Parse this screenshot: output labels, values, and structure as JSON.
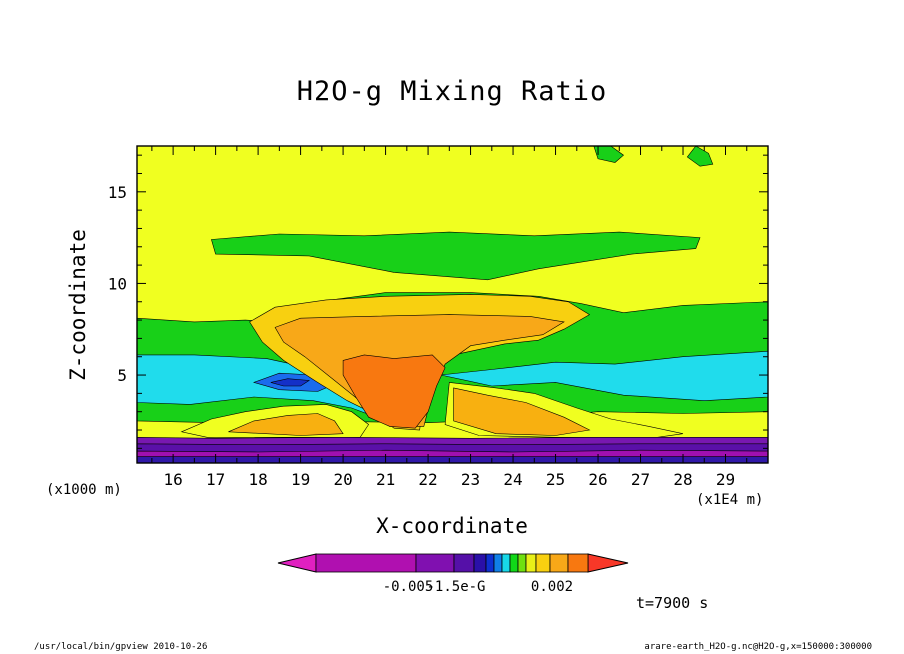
{
  "chart_data": {
    "type": "contour",
    "title": "H2O-g Mixing Ratio",
    "xlabel": "X-coordinate",
    "ylabel": "Z-coordinate",
    "x_units": "(x1E4 m)",
    "y_units": "(x1000 m)",
    "xlim": [
      15.15,
      30.0
    ],
    "ylim": [
      0.2,
      17.5
    ],
    "x_ticks": [
      "16",
      "17",
      "18",
      "19",
      "20",
      "21",
      "22",
      "23",
      "24",
      "25",
      "26",
      "27",
      "28",
      "29"
    ],
    "y_ticks": [
      "5",
      "10",
      "15"
    ],
    "colorbar_labels": [
      "-0.005",
      "-1.5e-G",
      "0.002"
    ],
    "colorbar_colors": [
      "#e020c0",
      "#b010b0",
      "#8010b0",
      "#5510a8",
      "#2a10a8",
      "#0d30d0",
      "#1080e8",
      "#18d8e8",
      "#10d818",
      "#70e010",
      "#e8f018",
      "#f8d010",
      "#f8a818",
      "#f87810",
      "#f83828"
    ],
    "background_color": "#f0ff20",
    "regions": [
      {
        "name": "upper-green-band",
        "color": "#18d018",
        "points": [
          [
            16.9,
            12.4
          ],
          [
            18.5,
            12.7
          ],
          [
            20.5,
            12.6
          ],
          [
            22.5,
            12.8
          ],
          [
            24.5,
            12.6
          ],
          [
            26.5,
            12.8
          ],
          [
            28.4,
            12.5
          ],
          [
            28.3,
            11.9
          ],
          [
            26.8,
            11.6
          ],
          [
            24.6,
            10.8
          ],
          [
            23.4,
            10.2
          ],
          [
            21.2,
            10.6
          ],
          [
            19.2,
            11.5
          ],
          [
            17.0,
            11.6
          ]
        ]
      },
      {
        "name": "green-pocket-top",
        "color": "#18d018",
        "points": [
          [
            26.3,
            17.5
          ],
          [
            26.6,
            17.0
          ],
          [
            26.4,
            16.6
          ],
          [
            26.0,
            16.8
          ],
          [
            25.9,
            17.5
          ]
        ]
      },
      {
        "name": "green-pocket-right",
        "color": "#18d018",
        "points": [
          [
            28.3,
            17.5
          ],
          [
            28.6,
            17.1
          ],
          [
            28.7,
            16.5
          ],
          [
            28.4,
            16.4
          ],
          [
            28.1,
            16.9
          ]
        ]
      },
      {
        "name": "mid-green-band",
        "color": "#18d018",
        "points": [
          [
            15.15,
            8.1
          ],
          [
            16.5,
            7.9
          ],
          [
            17.7,
            8.0
          ],
          [
            18.4,
            7.9
          ],
          [
            19.4,
            9.0
          ],
          [
            21.0,
            9.5
          ],
          [
            23.0,
            9.5
          ],
          [
            24.6,
            9.3
          ],
          [
            25.6,
            8.9
          ],
          [
            26.6,
            8.4
          ],
          [
            28.0,
            8.8
          ],
          [
            30.0,
            9.0
          ],
          [
            30.0,
            3.0
          ],
          [
            28.0,
            2.9
          ],
          [
            26.0,
            3.0
          ],
          [
            24.0,
            2.6
          ],
          [
            22.0,
            2.4
          ],
          [
            19.0,
            2.5
          ],
          [
            17.0,
            2.4
          ],
          [
            15.15,
            2.5
          ]
        ]
      },
      {
        "name": "cyan-layer-left",
        "color": "#20dcec",
        "points": [
          [
            15.15,
            6.1
          ],
          [
            16.5,
            6.1
          ],
          [
            18.2,
            5.9
          ],
          [
            19.6,
            5.2
          ],
          [
            20.4,
            4.0
          ],
          [
            20.9,
            2.6
          ],
          [
            20.2,
            3.2
          ],
          [
            19.3,
            3.6
          ],
          [
            17.9,
            3.8
          ],
          [
            16.4,
            3.4
          ],
          [
            15.15,
            3.5
          ]
        ]
      },
      {
        "name": "cyan-layer-right",
        "color": "#20dcec",
        "points": [
          [
            22.3,
            5.0
          ],
          [
            23.5,
            5.3
          ],
          [
            25.0,
            5.7
          ],
          [
            26.4,
            5.6
          ],
          [
            28.0,
            6.0
          ],
          [
            30.0,
            6.3
          ],
          [
            30.0,
            3.8
          ],
          [
            28.5,
            3.6
          ],
          [
            26.6,
            3.9
          ],
          [
            25.0,
            4.6
          ],
          [
            23.5,
            4.4
          ]
        ]
      },
      {
        "name": "blue-lens",
        "color": "#1b6cec",
        "points": [
          [
            17.9,
            4.6
          ],
          [
            18.5,
            5.1
          ],
          [
            19.3,
            5.0
          ],
          [
            19.8,
            4.5
          ],
          [
            19.4,
            4.1
          ],
          [
            18.5,
            4.2
          ]
        ]
      },
      {
        "name": "blue-core",
        "color": "#1430c8",
        "points": [
          [
            18.3,
            4.6
          ],
          [
            18.7,
            4.8
          ],
          [
            19.2,
            4.7
          ],
          [
            19.0,
            4.4
          ],
          [
            18.6,
            4.4
          ]
        ]
      },
      {
        "name": "yellow-low-left",
        "color": "#f0ff20",
        "points": [
          [
            16.2,
            1.9
          ],
          [
            16.9,
            2.6
          ],
          [
            17.7,
            3.0
          ],
          [
            18.6,
            3.3
          ],
          [
            19.6,
            3.4
          ],
          [
            20.2,
            3.0
          ],
          [
            20.6,
            2.3
          ],
          [
            20.4,
            1.6
          ],
          [
            18.6,
            1.6
          ],
          [
            16.8,
            1.6
          ]
        ]
      },
      {
        "name": "orange-low-left",
        "color": "#f8b010",
        "points": [
          [
            17.3,
            1.9
          ],
          [
            17.9,
            2.5
          ],
          [
            18.7,
            2.8
          ],
          [
            19.4,
            2.9
          ],
          [
            19.8,
            2.5
          ],
          [
            20.0,
            1.8
          ],
          [
            19.0,
            1.7
          ]
        ]
      },
      {
        "name": "yellow-low-right",
        "color": "#f0ff20",
        "points": [
          [
            22.5,
            4.6
          ],
          [
            23.6,
            4.3
          ],
          [
            24.5,
            4.0
          ],
          [
            25.5,
            3.2
          ],
          [
            26.3,
            2.6
          ],
          [
            27.2,
            2.2
          ],
          [
            28.0,
            1.8
          ],
          [
            27.4,
            1.6
          ],
          [
            25.0,
            1.6
          ],
          [
            23.2,
            1.7
          ],
          [
            22.4,
            2.3
          ]
        ]
      },
      {
        "name": "orange-low-right",
        "color": "#f8b010",
        "points": [
          [
            22.6,
            4.3
          ],
          [
            23.4,
            3.9
          ],
          [
            24.3,
            3.5
          ],
          [
            25.2,
            2.7
          ],
          [
            25.8,
            2.0
          ],
          [
            25.0,
            1.7
          ],
          [
            23.6,
            1.8
          ],
          [
            22.6,
            2.5
          ]
        ]
      },
      {
        "name": "cloud-top-layer",
        "color": "#f8d010",
        "points": [
          [
            17.8,
            7.9
          ],
          [
            18.4,
            8.7
          ],
          [
            19.6,
            9.1
          ],
          [
            21.0,
            9.3
          ],
          [
            23.0,
            9.4
          ],
          [
            24.4,
            9.3
          ],
          [
            25.3,
            9.0
          ],
          [
            25.8,
            8.3
          ],
          [
            25.2,
            7.5
          ],
          [
            24.6,
            6.9
          ],
          [
            23.8,
            6.7
          ],
          [
            22.6,
            6.1
          ],
          [
            22.1,
            5.2
          ],
          [
            21.9,
            3.6
          ],
          [
            21.8,
            2.0
          ],
          [
            21.2,
            2.1
          ],
          [
            20.8,
            2.8
          ],
          [
            20.1,
            3.6
          ],
          [
            19.4,
            4.6
          ],
          [
            18.6,
            5.8
          ],
          [
            18.1,
            6.8
          ]
        ]
      },
      {
        "name": "cloud-orange-core",
        "color": "#f8a818",
        "points": [
          [
            18.4,
            7.6
          ],
          [
            19.0,
            8.1
          ],
          [
            20.5,
            8.2
          ],
          [
            22.5,
            8.3
          ],
          [
            24.4,
            8.2
          ],
          [
            25.2,
            7.9
          ],
          [
            24.7,
            7.2
          ],
          [
            23.8,
            6.9
          ],
          [
            23.0,
            6.6
          ],
          [
            22.4,
            5.6
          ],
          [
            22.1,
            4.0
          ],
          [
            21.9,
            2.2
          ],
          [
            21.1,
            2.2
          ],
          [
            20.5,
            3.4
          ],
          [
            19.8,
            4.7
          ],
          [
            19.1,
            6.0
          ],
          [
            18.6,
            6.8
          ]
        ]
      },
      {
        "name": "cloud-deep-orange",
        "color": "#f87810",
        "points": [
          [
            20.0,
            5.8
          ],
          [
            20.5,
            6.1
          ],
          [
            21.2,
            5.9
          ],
          [
            22.1,
            6.1
          ],
          [
            22.4,
            5.4
          ],
          [
            22.2,
            4.4
          ],
          [
            22.0,
            3.0
          ],
          [
            21.7,
            2.1
          ],
          [
            21.1,
            2.2
          ],
          [
            20.6,
            2.7
          ],
          [
            20.3,
            3.8
          ],
          [
            20.0,
            5.0
          ]
        ]
      },
      {
        "name": "surface-purple",
        "color": "#7818b0",
        "points": [
          [
            15.15,
            1.6
          ],
          [
            17.0,
            1.55
          ],
          [
            20.0,
            1.6
          ],
          [
            23.0,
            1.55
          ],
          [
            26.0,
            1.6
          ],
          [
            30.0,
            1.6
          ],
          [
            30.0,
            0.2
          ],
          [
            15.15,
            0.2
          ]
        ]
      },
      {
        "name": "surface-violet",
        "color": "#5a10a8",
        "points": [
          [
            15.15,
            1.25
          ],
          [
            18.0,
            1.2
          ],
          [
            21.0,
            1.25
          ],
          [
            24.0,
            1.2
          ],
          [
            27.0,
            1.25
          ],
          [
            30.0,
            1.25
          ],
          [
            30.0,
            0.2
          ],
          [
            15.15,
            0.2
          ]
        ]
      },
      {
        "name": "surface-magenta",
        "color": "#a010b0",
        "points": [
          [
            15.15,
            0.85
          ],
          [
            18.0,
            0.8
          ],
          [
            21.0,
            0.9
          ],
          [
            24.0,
            0.8
          ],
          [
            27.0,
            0.9
          ],
          [
            30.0,
            0.85
          ],
          [
            30.0,
            0.5
          ],
          [
            15.15,
            0.5
          ]
        ]
      },
      {
        "name": "surface-deep-blue",
        "color": "#3018a8",
        "points": [
          [
            15.15,
            0.55
          ],
          [
            30.0,
            0.55
          ],
          [
            30.0,
            0.2
          ],
          [
            15.15,
            0.2
          ]
        ]
      }
    ]
  },
  "annotations": {
    "time": "t=7900 s",
    "footer_left": "/usr/local/bin/gpview  2010-10-26",
    "footer_right": "arare-earth_H2O-g.nc@H2O-g,x=150000:300000"
  }
}
